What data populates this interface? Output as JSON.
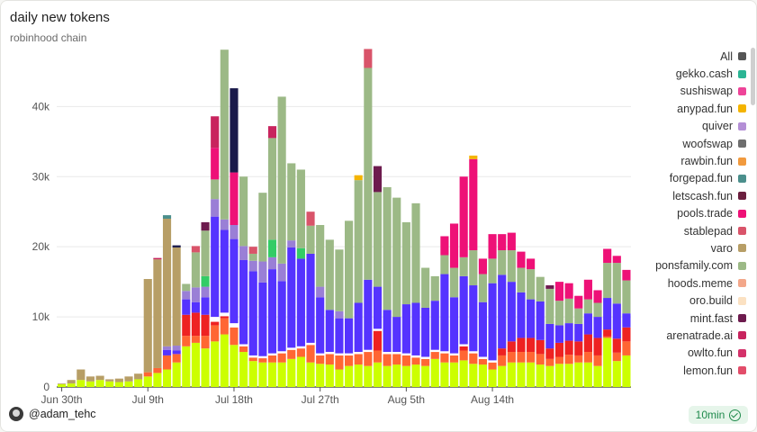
{
  "colors": {
    "ponsfamily": "#9cb986",
    "others_base": "#ccff00",
    "others_orange": "#ff6633",
    "others_red": "#ee2222",
    "indigo": "#5533ff",
    "varo": "#b79e66",
    "pools_trade": "#ee1177",
    "lavender": "#9a7fd6",
    "rawbin_fun": "#f19a3e"
  },
  "chart_data": {
    "type": "bar",
    "stacked": true,
    "title": "daily new tokens",
    "subtitle": "robinhood chain",
    "x_tick_labels": [
      "Jun 30th",
      "Jul 9th",
      "Jul 18th",
      "Jul 27th",
      "Aug 5th",
      "Aug 14th"
    ],
    "y_tick_labels": [
      "0",
      "10k",
      "20k",
      "30k",
      "40k"
    ],
    "ylim": [
      0,
      48000
    ],
    "grid": "horizontal",
    "legend_position": "right",
    "legend": [
      {
        "name": "All",
        "color": "#555555"
      },
      {
        "name": "gekko.cash",
        "color": "#2bb594"
      },
      {
        "name": "sushiswap",
        "color": "#ee4499"
      },
      {
        "name": "anypad.fun",
        "color": "#f4b400"
      },
      {
        "name": "quiver",
        "color": "#b48fd6"
      },
      {
        "name": "woofswap",
        "color": "#6e6e6e"
      },
      {
        "name": "rawbin.fun",
        "color": "#f19a3e"
      },
      {
        "name": "forgepad.fun",
        "color": "#4b8f8c"
      },
      {
        "name": "letscash.fun",
        "color": "#6b1f3f"
      },
      {
        "name": "pools.trade",
        "color": "#ee1177"
      },
      {
        "name": "stablepad",
        "color": "#d9546a"
      },
      {
        "name": "varo",
        "color": "#b79e66"
      },
      {
        "name": "ponsfamily.com",
        "color": "#9cb986"
      },
      {
        "name": "hoods.meme",
        "color": "#f3a78a"
      },
      {
        "name": "oro.build",
        "color": "#fbe1c2"
      },
      {
        "name": "mint.fast",
        "color": "#6d1b4e"
      },
      {
        "name": "arenatrade.ai",
        "color": "#c8245e"
      },
      {
        "name": "owlto.fun",
        "color": "#d4326a"
      },
      {
        "name": "lemon.fun",
        "color": "#e24d6a"
      }
    ],
    "series_keys": [
      "base",
      "orange",
      "red",
      "thin",
      "indigo",
      "lavender",
      "green",
      "pons",
      "varo",
      "pools",
      "top"
    ],
    "days": [
      {
        "base": 400,
        "varo": 100
      },
      {
        "base": 500,
        "varo": 500
      },
      {
        "base": 1000,
        "varo": 1500
      },
      {
        "base": 800,
        "varo": 700
      },
      {
        "base": 1000,
        "varo": 600
      },
      {
        "base": 800,
        "varo": 300
      },
      {
        "base": 700,
        "varo": 500
      },
      {
        "base": 800,
        "varo": 700
      },
      {
        "base": 1100,
        "varo": 800
      },
      {
        "base": 1500,
        "orange": 600,
        "varo": 13300
      },
      {
        "base": 2000,
        "orange": 700,
        "varo": 15500,
        "top": 200
      },
      {
        "base": 2500,
        "orange": 2000,
        "indigo": 800,
        "lavender": 500,
        "varo": 18200,
        "top": 500
      },
      {
        "base": 3500,
        "orange": 1200,
        "indigo": 500,
        "lavender": 700,
        "varo": 14000,
        "top": 300
      },
      {
        "base": 5800,
        "orange": 1500,
        "red": 3000,
        "indigo": 2200,
        "lavender": 1200,
        "pons": 1000
      },
      {
        "base": 6300,
        "orange": 1000,
        "red": 3300,
        "indigo": 1500,
        "lavender": 2100,
        "pons": 5000,
        "top": 900
      },
      {
        "base": 5500,
        "orange": 1800,
        "red": 3000,
        "green": 1500,
        "indigo": 2500,
        "lavender": 1500,
        "pons": 6500,
        "top": 1200
      },
      {
        "base": 6500,
        "orange": 2300,
        "red": 500,
        "thin": 700,
        "indigo": 14300,
        "lavender": 2500,
        "pons": 2800,
        "pools": 4500,
        "top": 4500
      },
      {
        "base": 7500,
        "orange": 2300,
        "red": 300,
        "thin": 500,
        "indigo": 11800,
        "lavender": 1500,
        "pons": 24200
      },
      {
        "base": 6000,
        "orange": 2500,
        "thin": 600,
        "indigo": 12000,
        "lavender": 2000,
        "pools": 7500,
        "top": 12000
      },
      {
        "base": 5000,
        "orange": 800,
        "thin": 300,
        "indigo": 12000,
        "lavender": 2000,
        "pons": 9900
      },
      {
        "base": 3700,
        "orange": 500,
        "thin": 300,
        "indigo": 12000,
        "lavender": 1500,
        "pons": 1000,
        "top": 1000
      },
      {
        "base": 3500,
        "orange": 600,
        "thin": 300,
        "indigo": 10500,
        "lavender": 3000,
        "pons": 9800
      },
      {
        "base": 3500,
        "orange": 1000,
        "thin": 300,
        "indigo": 12000,
        "lavender": 1700,
        "green": 2500,
        "top": 1700,
        "pons": 14500
      },
      {
        "base": 3500,
        "orange": 1300,
        "thin": 300,
        "indigo": 10000,
        "lavender": 2500,
        "pons": 23800
      },
      {
        "base": 4000,
        "orange": 1300,
        "thin": 300,
        "indigo": 14300,
        "lavender": 1000,
        "pons": 11000
      },
      {
        "base": 4300,
        "orange": 1200,
        "thin": 300,
        "indigo": 12500,
        "green": 1500,
        "pons": 11200
      },
      {
        "base": 3500,
        "orange": 2500,
        "thin": 300,
        "indigo": 12700,
        "pons": 4000,
        "top": 2000
      },
      {
        "base": 3300,
        "orange": 1200,
        "thin": 300,
        "indigo": 8000,
        "lavender": 1500,
        "pons": 8800
      },
      {
        "base": 3200,
        "orange": 1500,
        "thin": 300,
        "indigo": 6000,
        "pons": 10000
      },
      {
        "base": 2500,
        "orange": 2000,
        "thin": 300,
        "indigo": 5000,
        "lavender": 1000,
        "pons": 8800
      },
      {
        "base": 3000,
        "orange": 1500,
        "thin": 300,
        "indigo": 5000,
        "pons": 13900
      },
      {
        "base": 3200,
        "orange": 1500,
        "thin": 300,
        "indigo": 7000,
        "pons": 17500,
        "top": 700
      },
      {
        "base": 3000,
        "orange": 2000,
        "thin": 300,
        "indigo": 10000,
        "pons": 30200,
        "top": 2700
      },
      {
        "base": 3500,
        "orange": 1700,
        "red": 2800,
        "thin": 300,
        "indigo": 6000,
        "pons": 13500,
        "top": 3700
      },
      {
        "base": 3000,
        "orange": 1700,
        "thin": 300,
        "indigo": 6000,
        "pons": 17500
      },
      {
        "base": 3200,
        "orange": 1500,
        "thin": 300,
        "indigo": 5000,
        "pons": 17000
      },
      {
        "base": 3000,
        "orange": 1500,
        "thin": 300,
        "indigo": 7000,
        "pons": 11700
      },
      {
        "base": 3200,
        "orange": 1000,
        "thin": 300,
        "indigo": 7500,
        "pons": 14200
      },
      {
        "base": 3000,
        "orange": 1000,
        "thin": 300,
        "indigo": 7000,
        "pons": 5700
      },
      {
        "base": 4000,
        "orange": 1000,
        "thin": 300,
        "indigo": 7000,
        "pons": 3500
      },
      {
        "base": 3500,
        "orange": 1300,
        "thin": 300,
        "indigo": 11000,
        "pons": 2700,
        "pools": 2700
      },
      {
        "base": 3500,
        "orange": 1000,
        "thin": 300,
        "indigo": 8000,
        "pons": 4200,
        "pools": 6300
      },
      {
        "base": 3800,
        "orange": 1400,
        "red": 600,
        "thin": 300,
        "indigo": 9700,
        "pons": 2700,
        "pools": 11500
      },
      {
        "base": 3300,
        "orange": 1500,
        "thin": 300,
        "indigo": 9400,
        "pons": 5000,
        "pools": 13000,
        "top": 500
      },
      {
        "base": 3200,
        "orange": 800,
        "thin": 300,
        "indigo": 7800,
        "pons": 4000,
        "pools": 2200
      },
      {
        "base": 2500,
        "orange": 1000,
        "thin": 300,
        "indigo": 11000,
        "pons": 3500,
        "pools": 3500
      },
      {
        "base": 3000,
        "orange": 1500,
        "red": 1000,
        "indigo": 10500,
        "pons": 3500,
        "pools": 2300
      },
      {
        "base": 3500,
        "orange": 1500,
        "red": 1500,
        "indigo": 8500,
        "pons": 4500,
        "pools": 2500
      },
      {
        "base": 3500,
        "orange": 1500,
        "red": 2000,
        "indigo": 6500,
        "pons": 3500,
        "pools": 2300
      },
      {
        "base": 3500,
        "orange": 1500,
        "red": 2000,
        "indigo": 5500,
        "pons": 4300,
        "pools": 1500
      },
      {
        "base": 3200,
        "orange": 1500,
        "red": 2000,
        "indigo": 5500,
        "pons": 3500
      },
      {
        "base": 3000,
        "orange": 1000,
        "red": 1500,
        "indigo": 3500,
        "pons": 5000,
        "top": 500
      },
      {
        "base": 3300,
        "orange": 1000,
        "red": 2000,
        "indigo": 2500,
        "pons": 3500,
        "pools": 2700
      },
      {
        "base": 3300,
        "orange": 1300,
        "red": 2000,
        "indigo": 2500,
        "pons": 3500,
        "pools": 2200
      },
      {
        "base": 3500,
        "orange": 1000,
        "red": 2000,
        "indigo": 2500,
        "pons": 2200,
        "pools": 1800
      },
      {
        "base": 3500,
        "orange": 1500,
        "red": 2500,
        "indigo": 3000,
        "pons": 2000,
        "pools": 2800
      },
      {
        "base": 3000,
        "orange": 1500,
        "red": 2500,
        "indigo": 3000,
        "pons": 2000,
        "pools": 1800
      },
      {
        "base": 7000,
        "orange": 200,
        "red": 1000,
        "indigo": 4500,
        "pons": 5000,
        "pools": 2000
      },
      {
        "base": 3700,
        "orange": 1200,
        "red": 2000,
        "indigo": 5000,
        "pons": 5800,
        "pools": 1000
      },
      {
        "base": 4500,
        "orange": 2000,
        "red": 2000,
        "indigo": 2000,
        "pons": 4700,
        "pools": 1500
      }
    ]
  },
  "footer": {
    "author": "@adam_tehc",
    "refresh": "10min"
  }
}
